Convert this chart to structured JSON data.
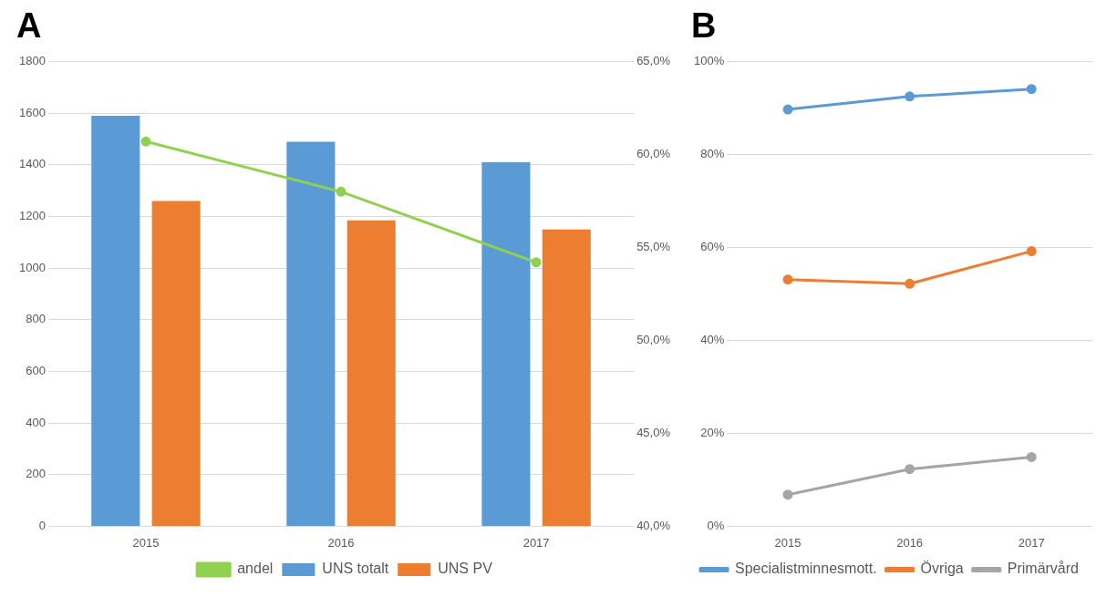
{
  "chart_data": [
    {
      "type": "bar",
      "title": "A",
      "categories": [
        "2015",
        "2016",
        "2017"
      ],
      "series": [
        {
          "name": "UNS totalt",
          "color": "#5b9bd5",
          "values": [
            1590,
            1490,
            1410
          ]
        },
        {
          "name": "UNS PV",
          "color": "#ed7d31",
          "values": [
            1260,
            1185,
            1150
          ]
        },
        {
          "name": "andel",
          "type": "line",
          "axis": "y2",
          "color": "#92d050",
          "values": [
            60.7,
            58.0,
            54.2
          ]
        }
      ],
      "ylim": [
        0,
        1800
      ],
      "yticks": [
        0,
        200,
        400,
        600,
        800,
        1000,
        1200,
        1400,
        1600,
        1800
      ],
      "y2lim": [
        40,
        65
      ],
      "y2ticks": [
        {
          "value": 40,
          "label": "40,0%"
        },
        {
          "value": 45,
          "label": "45,0%"
        },
        {
          "value": 50,
          "label": "50,0%"
        },
        {
          "value": 55,
          "label": "55,0%"
        },
        {
          "value": 60,
          "label": "60,0%"
        },
        {
          "value": 65,
          "label": "65,0%"
        }
      ],
      "grid": "y",
      "legend": "bottom",
      "marker": "circle"
    },
    {
      "type": "line",
      "title": "B",
      "categories": [
        "2015",
        "2016",
        "2017"
      ],
      "series": [
        {
          "name": "Specialistminnesmott.",
          "color": "#5b9bd5",
          "values": [
            89.7,
            92.5,
            94.1
          ]
        },
        {
          "name": "Övriga",
          "color": "#ed7d31",
          "values": [
            53.1,
            52.2,
            59.2
          ]
        },
        {
          "name": "Primärvård",
          "color": "#a5a5a5",
          "values": [
            6.8,
            12.3,
            14.9
          ]
        }
      ],
      "ylim": [
        0,
        100
      ],
      "yticks": [
        {
          "value": 0,
          "label": "0%"
        },
        {
          "value": 20,
          "label": "20%"
        },
        {
          "value": 40,
          "label": "40%"
        },
        {
          "value": 60,
          "label": "60%"
        },
        {
          "value": 80,
          "label": "80%"
        },
        {
          "value": 100,
          "label": "100%"
        }
      ],
      "grid": "y",
      "legend": "bottom",
      "marker": "circle"
    }
  ]
}
